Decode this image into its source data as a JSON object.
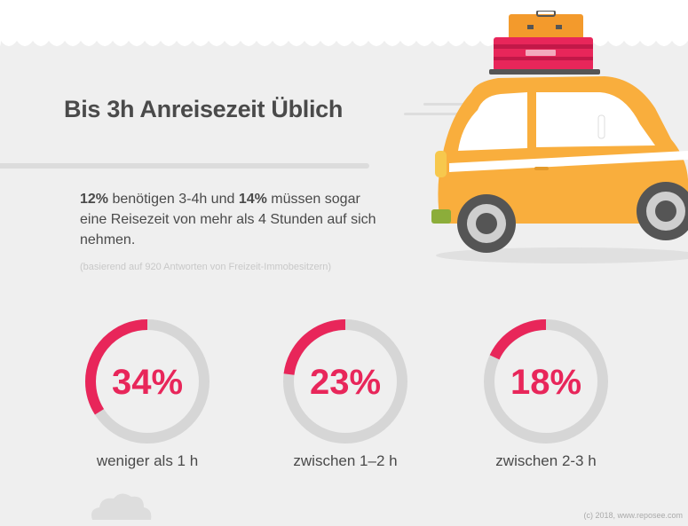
{
  "header": {
    "title": "Bis 3h Anreisezeit Üblich"
  },
  "summary": {
    "pct_a": "12%",
    "text_a": " benötigen 3-4h und ",
    "pct_b": "14%",
    "text_b": " müssen sogar eine Reisezeit von mehr als 4 Stunden auf sich nehmen."
  },
  "source_note": "(basierend auf 920 Antworten von Freizeit-Immobesitzern)",
  "footer": "(c) 2018, www.reposee.com",
  "colors": {
    "accent": "#e8265a",
    "ring": "#d6d6d6",
    "car": "#f9ae3d",
    "background": "#efefef"
  },
  "icons": [
    "car-icon",
    "suitcase-icon",
    "cloud-icon"
  ],
  "chart_data": {
    "type": "pie",
    "categories": [
      "weniger als 1 h",
      "zwischen 1–2 h",
      "zwischen 2-3 h"
    ],
    "values": [
      34,
      23,
      18
    ],
    "value_labels": [
      "34%",
      "23%",
      "18%"
    ],
    "unit": "%"
  }
}
